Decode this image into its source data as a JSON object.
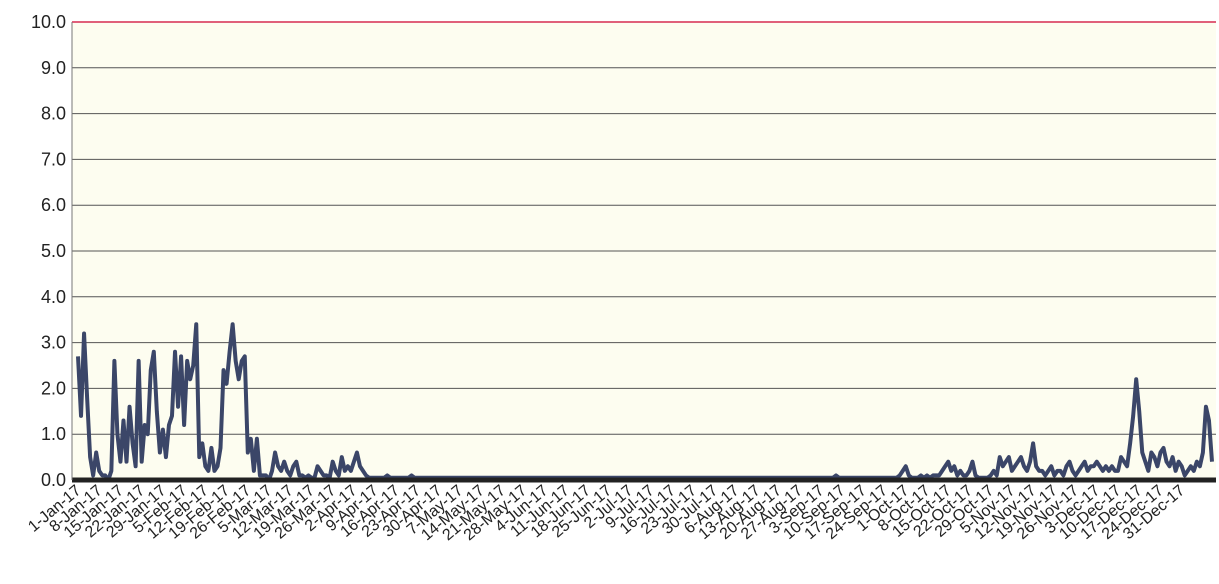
{
  "chart_data": {
    "type": "line",
    "title": "",
    "xlabel": "",
    "ylabel": "",
    "ylim": [
      0.0,
      10.0
    ],
    "y_ticks": [
      "0.0",
      "1.0",
      "2.0",
      "3.0",
      "4.0",
      "5.0",
      "6.0",
      "7.0",
      "8.0",
      "9.0",
      "10.0"
    ],
    "x_tick_labels": [
      "1-Jan-17",
      "8-Jan-17",
      "15-Jan-17",
      "22-Jan-17",
      "29-Jan-17",
      "5-Feb-17",
      "12-Feb-17",
      "19-Feb-17",
      "26-Feb-17",
      "5-Mar-17",
      "12-Mar-17",
      "19-Mar-17",
      "26-Mar-17",
      "2-Apr-17",
      "9-Apr-17",
      "16-Apr-17",
      "23-Apr-17",
      "30-Apr-17",
      "7-May-17",
      "14-May-17",
      "21-May-17",
      "28-May-17",
      "4-Jun-17",
      "11-Jun-17",
      "18-Jun-17",
      "25-Jun-17",
      "2-Jul-17",
      "9-Jul-17",
      "16-Jul-17",
      "23-Jul-17",
      "30-Jul-17",
      "6-Aug-17",
      "13-Aug-17",
      "20-Aug-17",
      "27-Aug-17",
      "3-Sep-17",
      "10-Sep-17",
      "17-Sep-17",
      "24-Sep-17",
      "1-Oct-17",
      "8-Oct-17",
      "15-Oct-17",
      "22-Oct-17",
      "29-Oct-17",
      "5-Nov-17",
      "12-Nov-17",
      "19-Nov-17",
      "26-Nov-17",
      "3-Dec-17",
      "10-Dec-17",
      "17-Dec-17",
      "24-Dec-17",
      "31-Dec-17"
    ],
    "grid": true,
    "colors": {
      "plot_background": "#fdfdf0",
      "gridline": "#555555",
      "series_line": "#3b4668",
      "reference_line": "#e0607a",
      "baseline": "#222222"
    },
    "series": [
      {
        "name": "",
        "x_start": "1-Jan-17",
        "x_step": "1 day",
        "values": [
          2.7,
          1.4,
          3.2,
          1.8,
          0.5,
          0.1,
          0.6,
          0.2,
          0.1,
          0.1,
          0.0,
          0.2,
          2.6,
          1.0,
          0.4,
          1.3,
          0.4,
          1.6,
          0.8,
          0.3,
          2.6,
          0.4,
          1.2,
          1.0,
          2.4,
          2.8,
          1.5,
          0.6,
          1.1,
          0.5,
          1.2,
          1.4,
          2.8,
          1.6,
          2.7,
          1.2,
          2.6,
          2.2,
          2.5,
          3.4,
          0.5,
          0.8,
          0.3,
          0.2,
          0.7,
          0.2,
          0.3,
          0.7,
          2.4,
          2.1,
          2.8,
          3.4,
          2.6,
          2.2,
          2.6,
          2.7,
          0.6,
          0.9,
          0.2,
          0.9,
          0.1,
          0.1,
          0.1,
          0.0,
          0.2,
          0.6,
          0.3,
          0.2,
          0.4,
          0.2,
          0.1,
          0.3,
          0.4,
          0.1,
          0.1,
          0.05,
          0.1,
          0.05,
          0.05,
          0.3,
          0.2,
          0.1,
          0.1,
          0.05,
          0.4,
          0.2,
          0.1,
          0.5,
          0.2,
          0.3,
          0.2,
          0.4,
          0.6,
          0.3,
          0.2,
          0.1,
          0.05,
          0.05,
          0.05,
          0.05,
          0.05,
          0.05,
          0.1,
          0.05,
          0.05,
          0.05,
          0.05,
          0.05,
          0.05,
          0.05,
          0.1,
          0.05,
          0.05,
          0.05,
          0.05,
          0.05,
          0.05,
          0.05,
          0.05,
          0.05,
          0.05,
          0.05,
          0.05,
          0.05,
          0.05,
          0.05,
          0.05,
          0.05,
          0.05,
          0.05,
          0.05,
          0.05,
          0.05,
          0.05,
          0.05,
          0.05,
          0.05,
          0.05,
          0.05,
          0.05,
          0.05,
          0.05,
          0.05,
          0.05,
          0.05,
          0.05,
          0.05,
          0.05,
          0.05,
          0.05,
          0.05,
          0.05,
          0.05,
          0.05,
          0.05,
          0.05,
          0.05,
          0.05,
          0.05,
          0.05,
          0.05,
          0.05,
          0.05,
          0.05,
          0.05,
          0.05,
          0.05,
          0.05,
          0.05,
          0.05,
          0.05,
          0.05,
          0.05,
          0.05,
          0.05,
          0.05,
          0.05,
          0.05,
          0.05,
          0.05,
          0.05,
          0.05,
          0.05,
          0.05,
          0.05,
          0.05,
          0.05,
          0.05,
          0.05,
          0.05,
          0.05,
          0.05,
          0.05,
          0.05,
          0.05,
          0.05,
          0.05,
          0.05,
          0.05,
          0.05,
          0.05,
          0.05,
          0.05,
          0.05,
          0.05,
          0.05,
          0.05,
          0.05,
          0.05,
          0.05,
          0.05,
          0.05,
          0.05,
          0.05,
          0.05,
          0.05,
          0.05,
          0.05,
          0.05,
          0.05,
          0.05,
          0.05,
          0.05,
          0.05,
          0.05,
          0.05,
          0.05,
          0.05,
          0.05,
          0.05,
          0.05,
          0.05,
          0.05,
          0.05,
          0.05,
          0.05,
          0.05,
          0.05,
          0.05,
          0.05,
          0.05,
          0.05,
          0.05,
          0.05,
          0.05,
          0.05,
          0.05,
          0.05,
          0.05,
          0.05,
          0.1,
          0.05,
          0.05,
          0.05,
          0.05,
          0.05,
          0.05,
          0.05,
          0.05,
          0.05,
          0.05,
          0.05,
          0.05,
          0.05,
          0.05,
          0.05,
          0.05,
          0.05,
          0.05,
          0.05,
          0.05,
          0.1,
          0.2,
          0.3,
          0.1,
          0.05,
          0.05,
          0.05,
          0.1,
          0.05,
          0.1,
          0.05,
          0.1,
          0.1,
          0.1,
          0.2,
          0.3,
          0.4,
          0.2,
          0.3,
          0.1,
          0.2,
          0.1,
          0.1,
          0.2,
          0.4,
          0.1,
          0.05,
          0.05,
          0.05,
          0.05,
          0.1,
          0.2,
          0.1,
          0.5,
          0.3,
          0.4,
          0.5,
          0.2,
          0.3,
          0.4,
          0.5,
          0.3,
          0.2,
          0.4,
          0.8,
          0.3,
          0.2,
          0.2,
          0.1,
          0.2,
          0.3,
          0.1,
          0.2,
          0.2,
          0.1,
          0.3,
          0.4,
          0.2,
          0.1,
          0.2,
          0.3,
          0.4,
          0.2,
          0.3,
          0.3,
          0.4,
          0.3,
          0.2,
          0.3,
          0.2,
          0.3,
          0.2,
          0.2,
          0.5,
          0.4,
          0.3,
          0.8,
          1.4,
          2.2,
          1.5,
          0.6,
          0.4,
          0.2,
          0.6,
          0.5,
          0.3,
          0.6,
          0.7,
          0.4,
          0.3,
          0.5,
          0.2,
          0.4,
          0.3,
          0.1,
          0.2,
          0.3,
          0.2,
          0.4,
          0.3,
          0.6,
          1.6,
          1.3,
          0.4
        ]
      }
    ],
    "reference_line": {
      "y": 10.0
    }
  }
}
